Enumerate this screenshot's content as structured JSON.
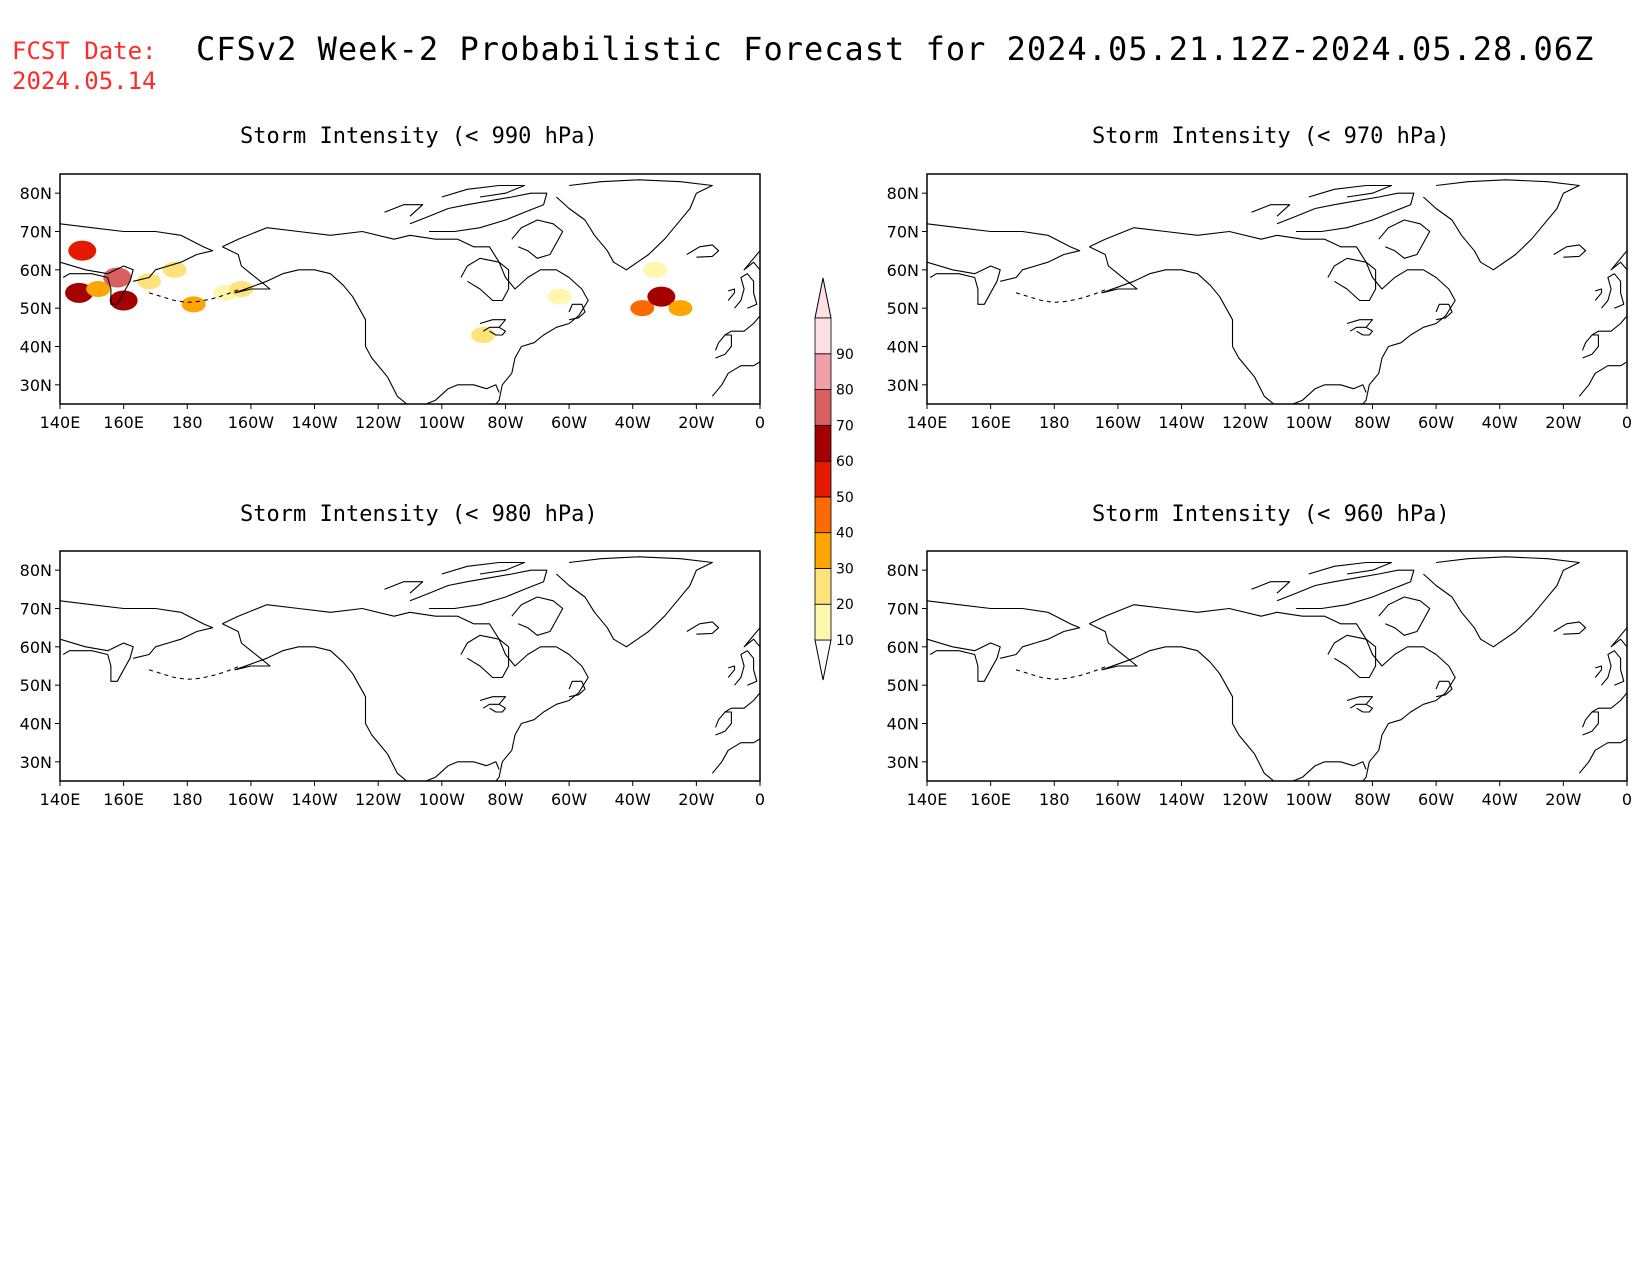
{
  "header": {
    "fcst_label": "FCST Date:",
    "fcst_date": "2024.05.14",
    "title": "CFSv2 Week-2 Probabilistic Forecast for 2024.05.21.12Z-2024.05.28.06Z"
  },
  "axes": {
    "lon_ticks": [
      "140E",
      "160E",
      "180",
      "160W",
      "140W",
      "120W",
      "100W",
      "80W",
      "60W",
      "40W",
      "20W",
      "0"
    ],
    "lat_ticks": [
      "80N",
      "70N",
      "60N",
      "50N",
      "40N",
      "30N"
    ]
  },
  "panels": [
    {
      "id": "p990",
      "title": "Storm Intensity (< 990 hPa)"
    },
    {
      "id": "p970",
      "title": "Storm Intensity (< 970 hPa)"
    },
    {
      "id": "p980",
      "title": "Storm Intensity (< 980 hPa)"
    },
    {
      "id": "p960",
      "title": "Storm Intensity (< 960 hPa)"
    }
  ],
  "colorbar": {
    "levels": [
      "10",
      "20",
      "30",
      "40",
      "50",
      "60",
      "70",
      "80",
      "90"
    ],
    "colors": [
      "#fff7b0",
      "#ffe27a",
      "#ffa500",
      "#ff6a00",
      "#e31a00",
      "#a50000",
      "#d96060",
      "#f0a0a8",
      "#fde0e4"
    ]
  },
  "chart_data": {
    "type": "heatmap",
    "description_units": "probability (%) of storm central pressure below threshold, lon/lat grid",
    "panels": [
      {
        "panel": "Storm Intensity (< 990 hPa)",
        "regions": [
          {
            "lon": 147,
            "lat": 65,
            "prob": 50
          },
          {
            "lon": 146,
            "lat": 54,
            "prob": 60
          },
          {
            "lon": 152,
            "lat": 55,
            "prob": 30
          },
          {
            "lon": 158,
            "lat": 58,
            "prob": 70
          },
          {
            "lon": 160,
            "lat": 52,
            "prob": 60
          },
          {
            "lon": 168,
            "lat": 57,
            "prob": 20
          },
          {
            "lon": 176,
            "lat": 60,
            "prob": 20
          },
          {
            "lon": 182,
            "lat": 51,
            "prob": 30
          },
          {
            "lon": 192,
            "lat": 54,
            "prob": 10
          },
          {
            "lon": 197,
            "lat": 55,
            "prob": 20
          },
          {
            "lon": 273,
            "lat": 43,
            "prob": 20
          },
          {
            "lon": 297,
            "lat": 53,
            "prob": 10
          },
          {
            "lon": 323,
            "lat": 50,
            "prob": 40
          },
          {
            "lon": 329,
            "lat": 53,
            "prob": 60
          },
          {
            "lon": 327,
            "lat": 60,
            "prob": 10
          },
          {
            "lon": 335,
            "lat": 50,
            "prob": 30
          }
        ]
      },
      {
        "panel": "Storm Intensity (< 970 hPa)",
        "regions": []
      },
      {
        "panel": "Storm Intensity (< 980 hPa)",
        "regions": []
      },
      {
        "panel": "Storm Intensity (< 960 hPa)",
        "regions": []
      }
    ],
    "lon_range": [
      140,
      360
    ],
    "lat_range": [
      25,
      85
    ]
  }
}
